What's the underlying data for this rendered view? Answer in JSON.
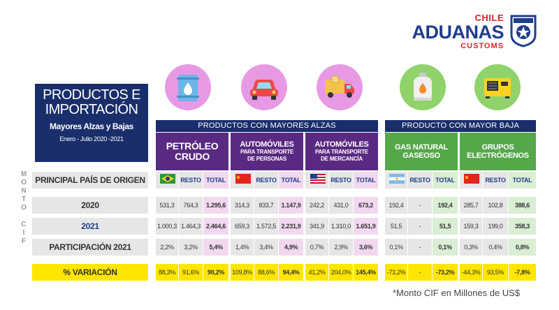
{
  "logo": {
    "chile": "CHILE",
    "main": "ADUANAS",
    "customs": "CUSTOMS",
    "badge_text": "ADUANAS CHILE"
  },
  "title": {
    "main": "PRODUCTOS E IMPORTACIÓN",
    "sub": "Mayores Alzas y Bajas",
    "date": "Enero - Julio 2020 -2021"
  },
  "side_label": "MONTO CIF",
  "groups": {
    "alzas": "PRODUCTOS CON MAYORES ALZAS",
    "baja": "PRODUCTO CON MAYOR BAJA"
  },
  "products": [
    {
      "line1": "PETRÓLEO",
      "line2": "CRUDO",
      "icon": "oil-barrel-icon",
      "country": "Brasil"
    },
    {
      "line1": "AUTOMÓVILES",
      "line2": "PARA TRANSPORTE",
      "line3": "DE PERSONAS",
      "icon": "car-icon",
      "country": "China"
    },
    {
      "line1": "AUTOMÓVILES",
      "line2": "PARA TRANSPORTE",
      "line3": "DE MERCANCÍA",
      "icon": "delivery-truck-icon",
      "country": "Estados Unidos"
    },
    {
      "line1": "GAS NATURAL",
      "line2": "GASEOSO",
      "icon": "gas-cylinder-icon",
      "country": "Argentina"
    },
    {
      "line1": "GRUPOS",
      "line2": "ELECTRÓGENOS",
      "icon": "generator-icon",
      "country": "China"
    }
  ],
  "row_labels": {
    "origin": "PRINCIPAL PAÍS DE ORIGEN",
    "y2020": "2020",
    "y2021": "2021",
    "share": "PARTICIPACIÓN 2021",
    "variation": "% VARIACIÓN"
  },
  "col_headers": {
    "resto": "RESTO",
    "total": "TOTAL"
  },
  "table": [
    {
      "y2020": [
        "531,3",
        "764,3",
        "1.295,6"
      ],
      "y2021": [
        "1.000,3",
        "1.464,3",
        "2.464,6"
      ],
      "share": [
        "2,2%",
        "3,2%",
        "5,4%"
      ],
      "var": [
        "88,3%",
        "91,6%",
        "90,2%"
      ]
    },
    {
      "y2020": [
        "314,3",
        "833,7",
        "1.147,9"
      ],
      "y2021": [
        "659,3",
        "1.572,5",
        "2.231,9"
      ],
      "share": [
        "1,4%",
        "3,4%",
        "4,9%"
      ],
      "var": [
        "109,8%",
        "88,6%",
        "94,4%"
      ]
    },
    {
      "y2020": [
        "242,2",
        "431,0",
        "673,2"
      ],
      "y2021": [
        "341,9",
        "1.310,0",
        "1.651,9"
      ],
      "share": [
        "0,7%",
        "2,9%",
        "3,6%"
      ],
      "var": [
        "41,2%",
        "204,0%",
        "145,4%"
      ]
    },
    {
      "y2020": [
        "192,4",
        "-",
        "192,4"
      ],
      "y2021": [
        "51,5",
        "-",
        "51,5"
      ],
      "share": [
        "0,1%",
        "-",
        "0,1%"
      ],
      "var": [
        "-73,2%",
        "-",
        "-73,2%"
      ]
    },
    {
      "y2020": [
        "285,7",
        "102,8",
        "388,6"
      ],
      "y2021": [
        "159,3",
        "199,0",
        "358,3"
      ],
      "share": [
        "0,3%",
        "0,4%",
        "0,8%"
      ],
      "var": [
        "-44,3%",
        "93,5%",
        "-7,8%"
      ]
    }
  ],
  "footnote": "*Monto CIF en Millones de US$",
  "colors": {
    "navy": "#1a2e6b",
    "purple": "#5a2a82",
    "green": "#55a84a",
    "pink": "#f1d8ef",
    "lightgreen": "#d9eed3",
    "yellow": "#ffe600",
    "red": "#d6242e"
  }
}
